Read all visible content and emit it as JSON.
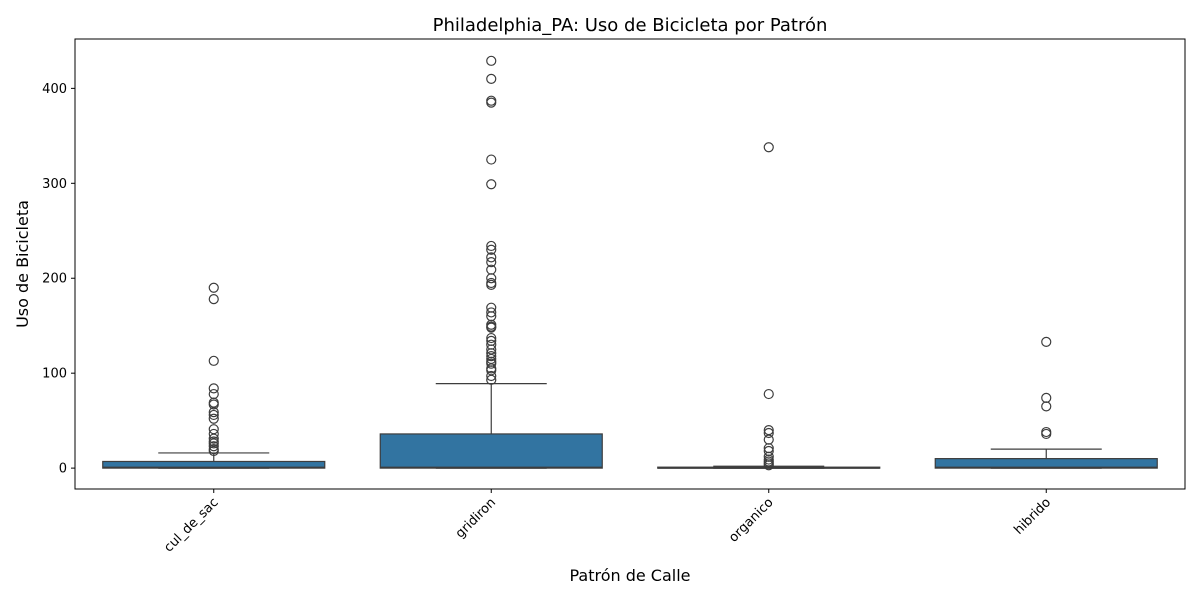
{
  "chart_data": {
    "type": "boxplot",
    "title": "Philadelphia_PA: Uso de Bicicleta por Patrón",
    "xlabel": "Patrón de Calle",
    "ylabel": "Uso de Bicicleta",
    "ylim": [
      -22,
      452
    ],
    "yticks": [
      0,
      100,
      200,
      300,
      400
    ],
    "grid": false,
    "box_color": "#3274a1",
    "categories": [
      "cul_de_sac",
      "gridiron",
      "organico",
      "hibrido"
    ],
    "boxes": [
      {
        "category": "cul_de_sac",
        "min": 0,
        "q1": 0,
        "median": 1,
        "q3": 7,
        "max": 16,
        "outliers": [
          190,
          178,
          113,
          84,
          78,
          69,
          67,
          59,
          56,
          52,
          41,
          36,
          31,
          28,
          26,
          23,
          20,
          18
        ]
      },
      {
        "category": "gridiron",
        "min": 0,
        "q1": 0,
        "median": 1,
        "q3": 36,
        "max": 89,
        "outliers": [
          429,
          410,
          387,
          385,
          325,
          299,
          234,
          230,
          222,
          217,
          209,
          200,
          195,
          193,
          169,
          164,
          160,
          151,
          149,
          148,
          137,
          134,
          130,
          125,
          121,
          118,
          115,
          112,
          110,
          105,
          103,
          97,
          93
        ]
      },
      {
        "category": "organico",
        "min": 0,
        "q1": 0,
        "median": 0,
        "q3": 1,
        "max": 2,
        "outliers": [
          338,
          78,
          40,
          37,
          30,
          21,
          18,
          12,
          9,
          7,
          5,
          3
        ]
      },
      {
        "category": "hibrido",
        "min": 0,
        "q1": 0,
        "median": 1,
        "q3": 10,
        "max": 20,
        "outliers": [
          133,
          74,
          65,
          38,
          36
        ]
      }
    ]
  }
}
